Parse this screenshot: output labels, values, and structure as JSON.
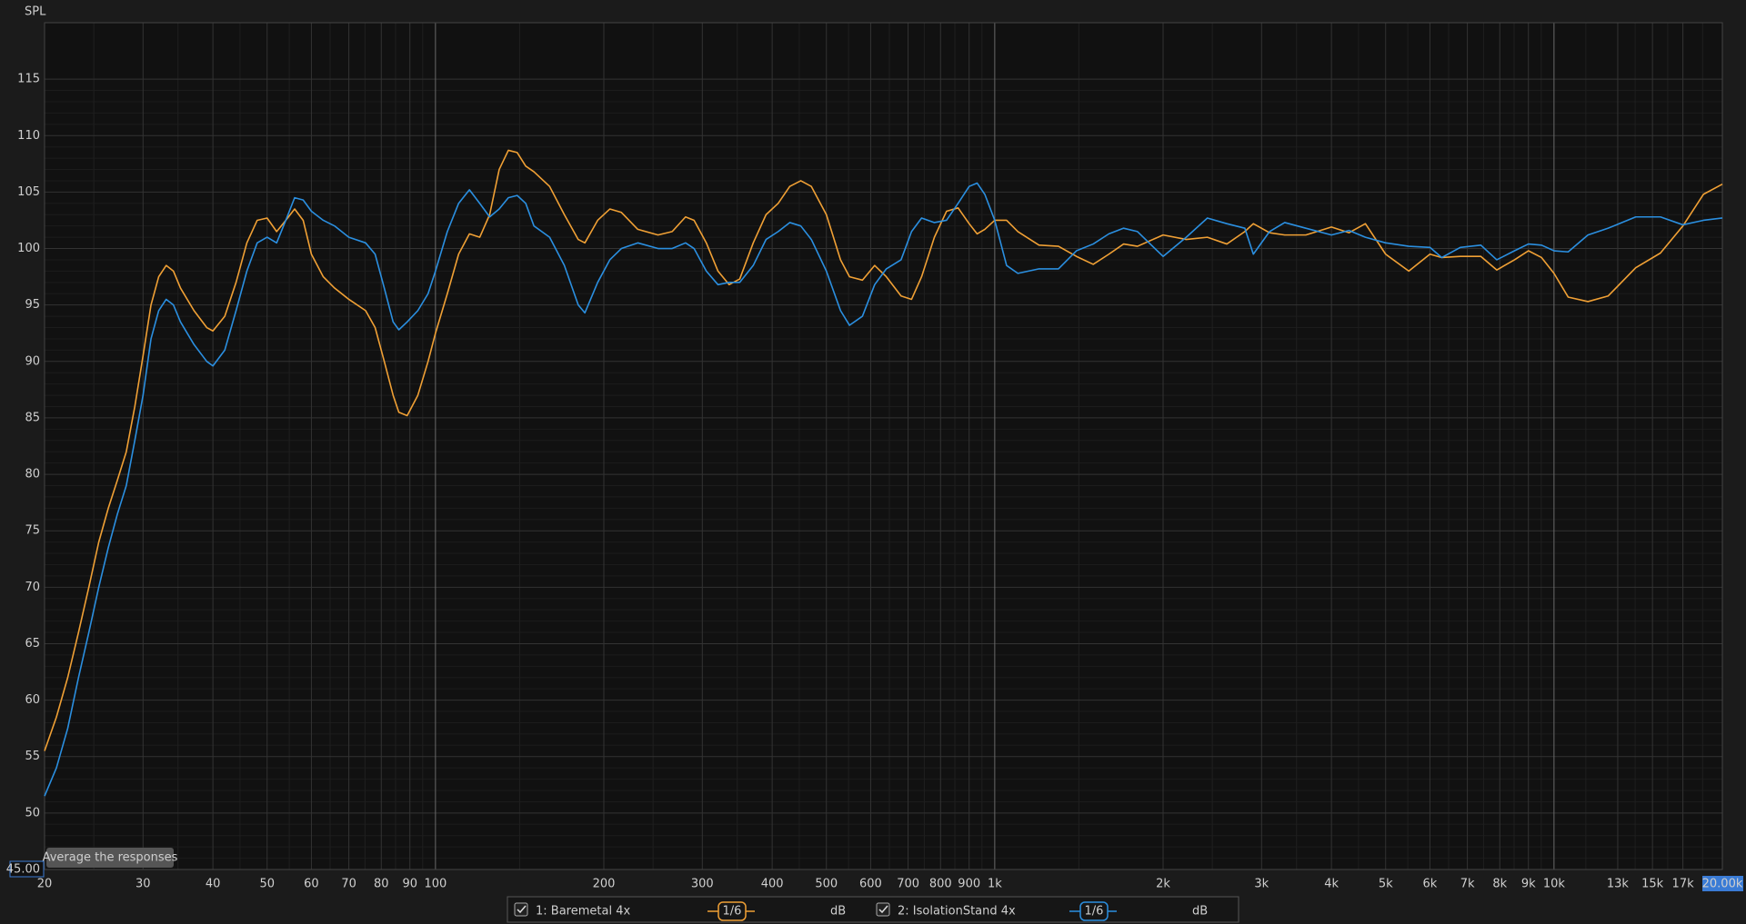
{
  "chart_data": {
    "type": "line",
    "ylabel": "SPL",
    "xscale": "log",
    "grid": true,
    "annotation": "Average the responses",
    "xlim": [
      20,
      20000
    ],
    "ylim": [
      45,
      120
    ],
    "yticks": [
      {
        "value": 45,
        "label": "45.00"
      },
      50,
      55,
      60,
      65,
      70,
      75,
      80,
      85,
      90,
      95,
      100,
      105,
      110,
      115
    ],
    "xticks": [
      20,
      30,
      40,
      50,
      60,
      70,
      80,
      90,
      100,
      200,
      300,
      400,
      500,
      600,
      700,
      800,
      900,
      {
        "value": 1000,
        "label": "1k"
      },
      {
        "value": 2000,
        "label": "2k"
      },
      {
        "value": 3000,
        "label": "3k"
      },
      {
        "value": 4000,
        "label": "4k"
      },
      {
        "value": 5000,
        "label": "5k"
      },
      {
        "value": 6000,
        "label": "6k"
      },
      {
        "value": 7000,
        "label": "7k"
      },
      {
        "value": 8000,
        "label": "8k"
      },
      {
        "value": 9000,
        "label": "9k"
      },
      {
        "value": 10000,
        "label": "10k"
      },
      {
        "value": 13000,
        "label": "13k"
      },
      {
        "value": 15000,
        "label": "15k"
      },
      {
        "value": 17000,
        "label": "17k"
      },
      {
        "value": 20000,
        "label": "20.00k"
      }
    ],
    "x": [
      20,
      21,
      22,
      23,
      24,
      25,
      26,
      27,
      28,
      29,
      30,
      31,
      32,
      33,
      34,
      35,
      37,
      39,
      40,
      42,
      44,
      46,
      48,
      50,
      52,
      54,
      56,
      58,
      60,
      63,
      66,
      70,
      75,
      78,
      81,
      84,
      86,
      89,
      93,
      97,
      100,
      105,
      110,
      115,
      120,
      125,
      130,
      135,
      140,
      145,
      150,
      160,
      170,
      180,
      185,
      195,
      205,
      215,
      230,
      250,
      265,
      280,
      290,
      305,
      320,
      335,
      350,
      370,
      390,
      410,
      430,
      450,
      470,
      500,
      530,
      550,
      580,
      610,
      640,
      680,
      710,
      740,
      780,
      820,
      860,
      900,
      930,
      960,
      1000,
      1050,
      1100,
      1200,
      1300,
      1400,
      1500,
      1600,
      1700,
      1800,
      2000,
      2200,
      2400,
      2600,
      2800,
      2900,
      3100,
      3300,
      3600,
      4000,
      4300,
      4600,
      5000,
      5500,
      6000,
      6300,
      6800,
      7400,
      7900,
      8500,
      9000,
      9500,
      10000,
      10600,
      11500,
      12500,
      14000,
      15500,
      17000,
      18500,
      20000
    ],
    "series": [
      {
        "name": "1: Baremetal 4x",
        "color": "#f0a035",
        "smoothing": "1/6",
        "unit": "dB",
        "values": [
          55.5,
          58.5,
          62,
          66,
          70,
          74,
          77,
          79.5,
          82,
          86,
          90.5,
          95,
          97.5,
          98.5,
          98,
          96.5,
          94.5,
          93,
          92.7,
          94,
          97,
          100.5,
          102.5,
          102.7,
          101.5,
          102.5,
          103.5,
          102.5,
          99.5,
          97.5,
          96.5,
          95.5,
          94.5,
          93,
          90,
          87,
          85.5,
          85.2,
          87,
          90,
          92.5,
          96,
          99.5,
          101.3,
          101,
          103,
          107,
          108.7,
          108.5,
          107.3,
          106.8,
          105.5,
          103,
          100.8,
          100.5,
          102.5,
          103.5,
          103.2,
          101.7,
          101.2,
          101.5,
          102.8,
          102.5,
          100.5,
          98,
          96.8,
          97.3,
          100.5,
          103,
          104,
          105.5,
          106,
          105.5,
          103,
          99,
          97.5,
          97.2,
          98.5,
          97.5,
          95.8,
          95.5,
          97.5,
          101,
          103.3,
          103.6,
          102.2,
          101.3,
          101.7,
          102.5,
          102.5,
          101.5,
          100.3,
          100.2,
          99.3,
          98.6,
          99.5,
          100.4,
          100.2,
          101.2,
          100.8,
          101,
          100.4,
          101.5,
          102.2,
          101.4,
          101.2,
          101.2,
          101.9,
          101.4,
          102.2,
          99.5,
          98,
          99.5,
          99.2,
          99.3,
          99.3,
          98.1,
          99,
          99.8,
          99.2,
          97.8,
          95.7,
          95.3,
          95.8,
          98.3,
          99.6,
          102,
          104.8,
          105.7
        ]
      },
      {
        "name": "2: IsolationStand 4x",
        "color": "#2b8fe0",
        "smoothing": "1/6",
        "unit": "dB",
        "values": [
          51.5,
          54,
          57.5,
          62,
          66,
          70,
          73.5,
          76.5,
          79,
          83,
          87,
          92,
          94.5,
          95.5,
          95,
          93.5,
          91.5,
          90,
          89.6,
          91,
          94.5,
          98,
          100.5,
          101,
          100.5,
          102.5,
          104.5,
          104.3,
          103.3,
          102.5,
          102,
          101,
          100.5,
          99.5,
          96.5,
          93.5,
          92.8,
          93.5,
          94.5,
          96,
          98,
          101.5,
          104,
          105.2,
          104,
          102.8,
          103.5,
          104.5,
          104.7,
          104,
          102,
          101,
          98.5,
          95,
          94.3,
          97,
          99,
          100,
          100.5,
          100,
          100,
          100.5,
          100,
          98,
          96.8,
          97,
          97,
          98.5,
          100.8,
          101.5,
          102.3,
          102,
          100.8,
          98,
          94.5,
          93.2,
          94,
          96.8,
          98.2,
          99,
          101.5,
          102.7,
          102.3,
          102.5,
          104,
          105.5,
          105.8,
          104.8,
          102.5,
          98.5,
          97.8,
          98.2,
          98.2,
          99.8,
          100.4,
          101.3,
          101.8,
          101.5,
          99.3,
          101,
          102.7,
          102.2,
          101.8,
          99.5,
          101.5,
          102.3,
          101.8,
          101.2,
          101.6,
          101,
          100.5,
          100.2,
          100.1,
          99.2,
          100.1,
          100.3,
          99,
          99.8,
          100.4,
          100.3,
          99.8,
          99.7,
          101.2,
          101.8,
          102.8,
          102.8,
          102.1,
          102.5,
          102.7
        ]
      }
    ]
  }
}
